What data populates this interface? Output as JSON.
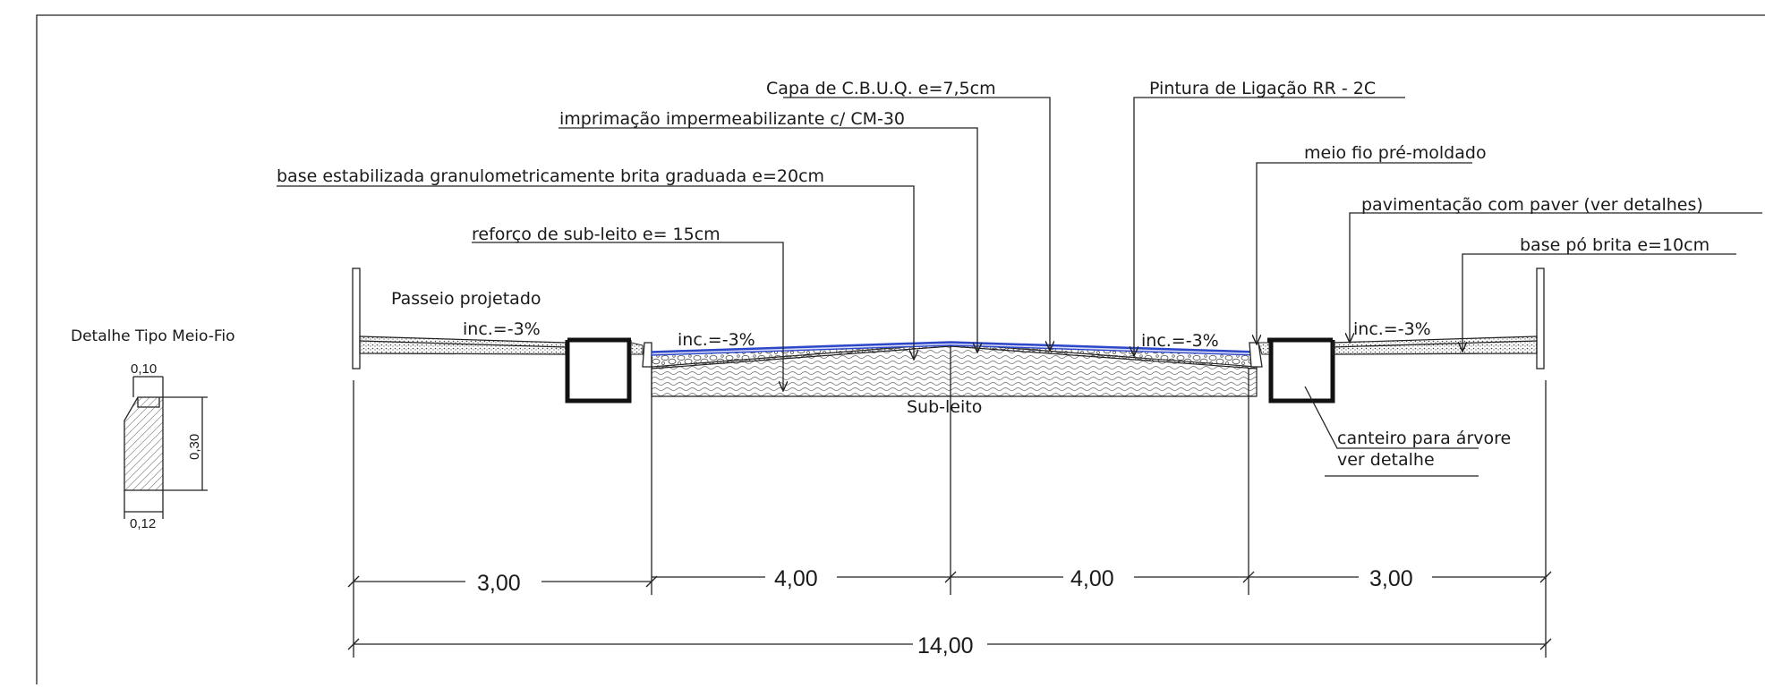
{
  "annotations": {
    "capa": "Capa de C.B.U.Q.  e=7,5cm",
    "pintura": "Pintura de Ligação RR - 2C",
    "imprimacao": "imprimação impermeabilizante c/ CM-30",
    "meio_fio": "meio fio pré-moldado",
    "base_brita": "base estabilizada granulometricamente brita graduada  e=20cm",
    "paver": "pavimentação com paver (ver detalhes)",
    "po_brita": "base pó brita e=10cm",
    "reforco": "reforço de sub-leito e= 15cm",
    "passeio": "Passeio projetado",
    "inc_left_walk": "inc.=-3%",
    "inc_left_road": "inc.=-3%",
    "inc_right_road": "inc.=-3%",
    "inc_right_walk": "inc.=-3%",
    "subleito": "Sub-leito",
    "canteiro_1": "canteiro para árvore",
    "canteiro_2": "ver detalhe"
  },
  "detail": {
    "title": "Detalhe Tipo Meio-Fio",
    "top_width": "0,10",
    "height": "0,30",
    "bottom_width": "0,12"
  },
  "dimensions": {
    "d1": "3,00",
    "d2": "4,00",
    "d3": "4,00",
    "d4": "3,00",
    "total": "14,00"
  },
  "colors": {
    "line": "#222222",
    "blue_layer": "#2e47c8"
  }
}
